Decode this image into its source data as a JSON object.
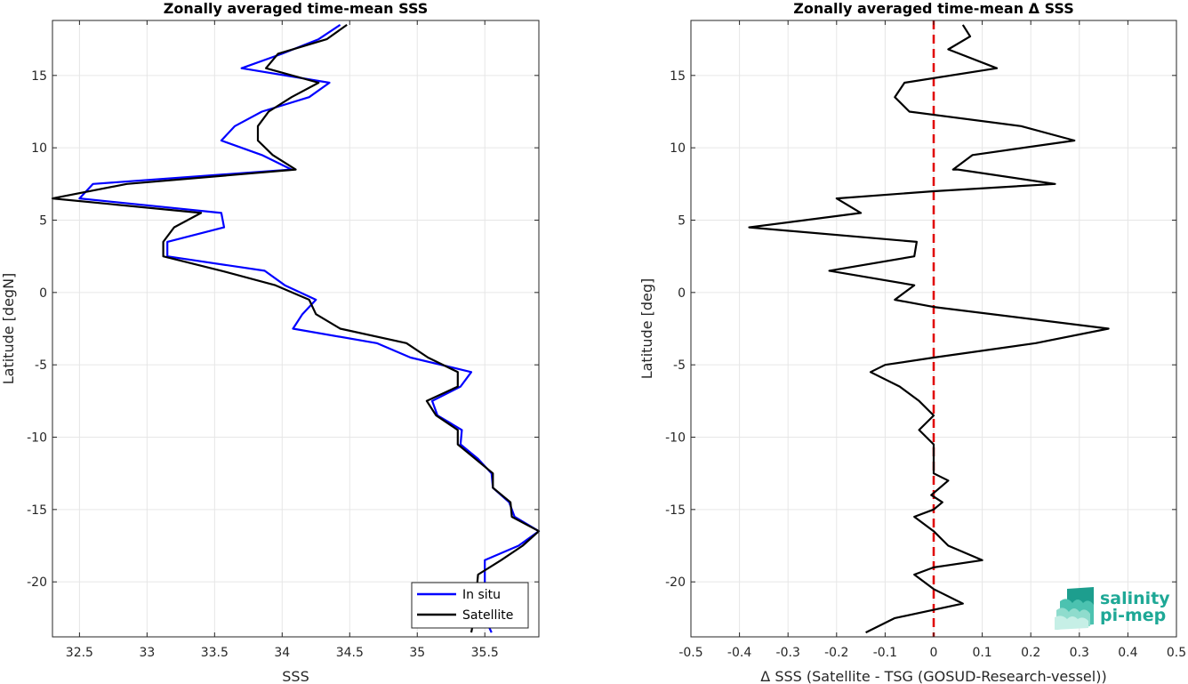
{
  "chart_data": [
    {
      "type": "line",
      "title": "Zonally averaged time-mean SSS",
      "xlabel": "SSS",
      "ylabel": "Latitude [degN]",
      "xlim": [
        32.3,
        35.9
      ],
      "ylim": [
        -23.8,
        18.8
      ],
      "xticks": [
        32.5,
        33,
        33.5,
        34,
        34.5,
        35,
        35.5
      ],
      "xtick_labels": [
        "32.5",
        "33",
        "33.5",
        "34",
        "34.5",
        "35",
        "35.5"
      ],
      "yticks": [
        -20,
        -15,
        -10,
        -5,
        0,
        5,
        10,
        15
      ],
      "ytick_labels": [
        "-20",
        "-15",
        "-10",
        "-5",
        "0",
        "5",
        "10",
        "15"
      ],
      "grid": true,
      "legend_position": "bottom-right",
      "legend": [
        "In situ",
        "Satellite"
      ],
      "series": [
        {
          "name": "In situ",
          "color": "#0000ff",
          "points": [
            [
              34.43,
              18.5
            ],
            [
              34.27,
              17.5
            ],
            [
              34.0,
              16.5
            ],
            [
              33.7,
              15.5
            ],
            [
              34.35,
              14.5
            ],
            [
              34.2,
              13.5
            ],
            [
              33.85,
              12.5
            ],
            [
              33.65,
              11.5
            ],
            [
              33.55,
              10.5
            ],
            [
              33.85,
              9.5
            ],
            [
              34.07,
              8.5
            ],
            [
              32.6,
              7.5
            ],
            [
              32.5,
              6.5
            ],
            [
              33.55,
              5.5
            ],
            [
              33.57,
              4.5
            ],
            [
              33.15,
              3.5
            ],
            [
              33.15,
              2.5
            ],
            [
              33.87,
              1.5
            ],
            [
              34.02,
              0.5
            ],
            [
              34.25,
              -0.5
            ],
            [
              34.15,
              -1.5
            ],
            [
              34.08,
              -2.5
            ],
            [
              34.7,
              -3.5
            ],
            [
              34.95,
              -4.5
            ],
            [
              35.4,
              -5.5
            ],
            [
              35.32,
              -6.5
            ],
            [
              35.11,
              -7.5
            ],
            [
              35.15,
              -8.5
            ],
            [
              35.33,
              -9.5
            ],
            [
              35.32,
              -10.5
            ],
            [
              35.45,
              -11.5
            ],
            [
              35.55,
              -12.5
            ],
            [
              35.56,
              -13.5
            ],
            [
              35.68,
              -14.5
            ],
            [
              35.72,
              -15.5
            ],
            [
              35.9,
              -16.5
            ],
            [
              35.75,
              -17.5
            ],
            [
              35.5,
              -18.5
            ],
            [
              35.5,
              -19.5
            ],
            [
              35.5,
              -20.5
            ],
            [
              35.5,
              -21.5
            ],
            [
              35.5,
              -22.5
            ],
            [
              35.55,
              -23.5
            ]
          ]
        },
        {
          "name": "Satellite",
          "color": "#000000",
          "points": [
            [
              34.48,
              18.5
            ],
            [
              34.33,
              17.5
            ],
            [
              33.97,
              16.5
            ],
            [
              33.88,
              15.5
            ],
            [
              34.27,
              14.5
            ],
            [
              34.07,
              13.5
            ],
            [
              33.9,
              12.5
            ],
            [
              33.82,
              11.5
            ],
            [
              33.82,
              10.5
            ],
            [
              33.93,
              9.5
            ],
            [
              34.1,
              8.5
            ],
            [
              32.85,
              7.5
            ],
            [
              32.3,
              6.5
            ],
            [
              33.4,
              5.5
            ],
            [
              33.2,
              4.5
            ],
            [
              33.12,
              3.5
            ],
            [
              33.12,
              2.5
            ],
            [
              33.55,
              1.5
            ],
            [
              33.95,
              0.5
            ],
            [
              34.2,
              -0.5
            ],
            [
              34.25,
              -1.5
            ],
            [
              34.43,
              -2.5
            ],
            [
              34.92,
              -3.5
            ],
            [
              35.08,
              -4.5
            ],
            [
              35.3,
              -5.5
            ],
            [
              35.3,
              -6.5
            ],
            [
              35.07,
              -7.5
            ],
            [
              35.14,
              -8.5
            ],
            [
              35.3,
              -9.5
            ],
            [
              35.3,
              -10.5
            ],
            [
              35.43,
              -11.5
            ],
            [
              35.56,
              -12.5
            ],
            [
              35.56,
              -13.5
            ],
            [
              35.69,
              -14.5
            ],
            [
              35.7,
              -15.5
            ],
            [
              35.9,
              -16.5
            ],
            [
              35.78,
              -17.5
            ],
            [
              35.62,
              -18.5
            ],
            [
              35.45,
              -19.5
            ],
            [
              35.44,
              -20.5
            ],
            [
              35.43,
              -21.5
            ],
            [
              35.42,
              -22.5
            ],
            [
              35.4,
              -23.5
            ]
          ]
        }
      ]
    },
    {
      "type": "line",
      "title": "Zonally averaged time-mean Δ SSS",
      "xlabel": "Δ SSS (Satellite - TSG (GOSUD-Research-vessel))",
      "ylabel": "Latitude [deg]",
      "xlim": [
        -0.5,
        0.5
      ],
      "ylim": [
        -23.8,
        18.8
      ],
      "xticks": [
        -0.5,
        -0.4,
        -0.3,
        -0.2,
        -0.1,
        0,
        0.1,
        0.2,
        0.3,
        0.4,
        0.5
      ],
      "xtick_labels": [
        "-0.5",
        "-0.4",
        "-0.3",
        "-0.2",
        "-0.1",
        "0",
        "0.1",
        "0.2",
        "0.3",
        "0.4",
        "0.5"
      ],
      "yticks": [
        -20,
        -15,
        -10,
        -5,
        0,
        5,
        10,
        15
      ],
      "ytick_labels": [
        "-20",
        "-15",
        "-10",
        "-5",
        "0",
        "5",
        "10",
        "15"
      ],
      "grid": true,
      "reference_line": {
        "x": 0,
        "color": "#e00000",
        "style": "dashed"
      },
      "series": [
        {
          "color": "#000000",
          "points": [
            [
              0.06,
              18.5
            ],
            [
              0.075,
              17.7
            ],
            [
              0.03,
              16.8
            ],
            [
              0.13,
              15.5
            ],
            [
              -0.06,
              14.5
            ],
            [
              -0.08,
              13.5
            ],
            [
              -0.05,
              12.5
            ],
            [
              0.18,
              11.5
            ],
            [
              0.29,
              10.5
            ],
            [
              0.08,
              9.5
            ],
            [
              0.04,
              8.5
            ],
            [
              0.05,
              8.5
            ],
            [
              0.25,
              7.5
            ],
            [
              0.0,
              7.0
            ],
            [
              -0.2,
              6.5
            ],
            [
              -0.15,
              5.5
            ],
            [
              -0.38,
              4.5
            ],
            [
              -0.035,
              3.5
            ],
            [
              -0.04,
              2.5
            ],
            [
              -0.215,
              1.5
            ],
            [
              -0.04,
              0.5
            ],
            [
              -0.08,
              -0.5
            ],
            [
              0.0,
              -1.0
            ],
            [
              0.36,
              -2.5
            ],
            [
              0.21,
              -3.5
            ],
            [
              0.0,
              -4.5
            ],
            [
              -0.1,
              -5.0
            ],
            [
              -0.13,
              -5.5
            ],
            [
              -0.07,
              -6.5
            ],
            [
              -0.03,
              -7.5
            ],
            [
              0.0,
              -8.5
            ],
            [
              -0.03,
              -9.5
            ],
            [
              0.0,
              -10.5
            ],
            [
              0.0,
              -11.5
            ],
            [
              0.0,
              -12.5
            ],
            [
              0.03,
              -13.0
            ],
            [
              -0.005,
              -14.0
            ],
            [
              0.018,
              -14.5
            ],
            [
              0.0,
              -15.0
            ],
            [
              -0.04,
              -15.5
            ],
            [
              0.0,
              -16.5
            ],
            [
              0.03,
              -17.5
            ],
            [
              0.1,
              -18.5
            ],
            [
              0.0,
              -19.0
            ],
            [
              -0.04,
              -19.5
            ],
            [
              0.0,
              -20.5
            ],
            [
              0.06,
              -21.5
            ],
            [
              -0.08,
              -22.5
            ],
            [
              -0.14,
              -23.5
            ]
          ]
        }
      ]
    }
  ],
  "logo": {
    "line1": "salinity",
    "line2": "pi-mep"
  }
}
